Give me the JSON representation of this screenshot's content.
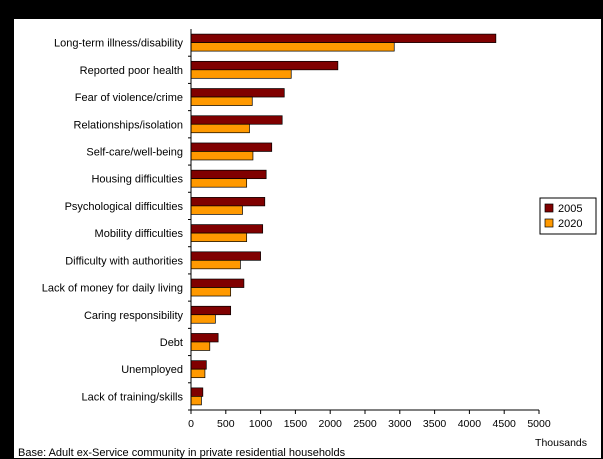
{
  "chart_data": {
    "type": "bar",
    "orientation": "horizontal",
    "categories": [
      "Long-term illness/disability",
      "Reported poor health",
      "Fear of violence/crime",
      "Relationships/isolation",
      "Self-care/well-being",
      "Housing difficulties",
      "Psychological difficulties",
      "Mobility difficulties",
      "Difficulty with authorities",
      "Lack of money for daily living",
      "Caring responsibility",
      "Debt",
      "Unemployed",
      "Lack of training/skills"
    ],
    "series": [
      {
        "name": "2005",
        "color": "#800000",
        "values": [
          4380,
          2110,
          1340,
          1310,
          1160,
          1080,
          1060,
          1030,
          1000,
          760,
          570,
          390,
          220,
          170
        ]
      },
      {
        "name": "2020",
        "color": "#FF9900",
        "values": [
          2920,
          1440,
          880,
          840,
          890,
          800,
          740,
          800,
          710,
          570,
          350,
          270,
          200,
          150
        ]
      }
    ],
    "xlabel": "Thousands",
    "xlim": [
      0,
      5000
    ],
    "ticks": [
      "0",
      "500",
      "1000",
      "1500",
      "2000",
      "2500",
      "3000",
      "3500",
      "4000",
      "4500",
      "5000"
    ],
    "grid": false,
    "legend_position": "right"
  },
  "footnote": "Base: Adult ex-Service community in private residential households"
}
